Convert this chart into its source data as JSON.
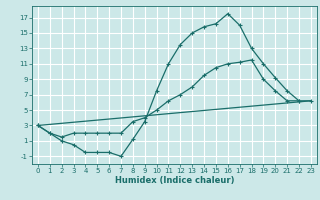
{
  "xlabel": "Humidex (Indice chaleur)",
  "bg_color": "#cce8e8",
  "grid_color": "#ffffff",
  "line_color": "#1a6e6a",
  "xlim": [
    -0.5,
    23.5
  ],
  "ylim": [
    -2,
    18.5
  ],
  "xticks": [
    0,
    1,
    2,
    3,
    4,
    5,
    6,
    7,
    8,
    9,
    10,
    11,
    12,
    13,
    14,
    15,
    16,
    17,
    18,
    19,
    20,
    21,
    22,
    23
  ],
  "yticks": [
    -1,
    1,
    3,
    5,
    7,
    9,
    11,
    13,
    15,
    17
  ],
  "curve1_x": [
    0,
    1,
    2,
    3,
    4,
    5,
    6,
    7,
    8,
    9,
    10,
    11,
    12,
    13,
    14,
    15,
    16,
    17,
    18,
    19,
    20,
    21,
    22
  ],
  "curve1_y": [
    3,
    2,
    1,
    0.5,
    -0.5,
    -0.5,
    -0.5,
    -1.0,
    1.2,
    3.5,
    7.5,
    11,
    13.5,
    15,
    15.8,
    16.2,
    17.5,
    16,
    13,
    11,
    9.2,
    7.5,
    6.2
  ],
  "curve2_x": [
    0,
    1,
    2,
    3,
    4,
    5,
    6,
    7,
    8,
    9,
    10,
    11,
    12,
    13,
    14,
    15,
    16,
    17,
    18,
    19,
    20,
    21,
    22,
    23
  ],
  "curve2_y": [
    3,
    2,
    1.5,
    2.0,
    2.0,
    2.0,
    2.0,
    2.0,
    3.5,
    4.0,
    5.0,
    6.2,
    7.0,
    8.0,
    9.5,
    10.5,
    11.0,
    11.2,
    11.5,
    9.0,
    7.5,
    6.2,
    6.2,
    6.2
  ],
  "curve3_x": [
    0,
    23
  ],
  "curve3_y": [
    3,
    6.2
  ],
  "xlabel_fontsize": 6.0,
  "tick_fontsize": 5.0
}
